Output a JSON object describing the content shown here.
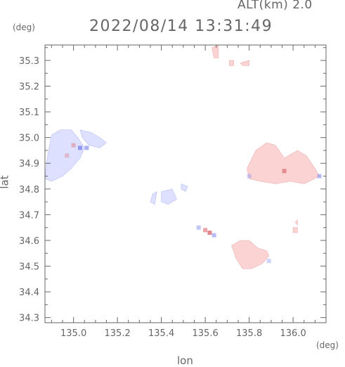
{
  "header": {
    "alt_label": "ALT(km)  2.0",
    "timestamp": "2022/08/14 13:31:49"
  },
  "axes": {
    "y_unit": "(deg)",
    "x_unit": "(deg)",
    "x_label": "lon",
    "y_label": "lat"
  },
  "colors": {
    "axis": "#666666",
    "negative_fill": "#dde0ff",
    "negative_dark": "#8890ee",
    "positive_fill": "#fbd3d3",
    "positive_dark": "#e07a80",
    "background": "#ffffff"
  },
  "chart_data": {
    "type": "heatmap",
    "title": "2022/08/14 13:31:49",
    "subtitle": "ALT(km)  2.0",
    "xlabel": "lon",
    "ylabel": "lat",
    "xlim": [
      134.87,
      136.15
    ],
    "ylim": [
      34.28,
      35.36
    ],
    "grid": false,
    "x_ticks": [
      135.0,
      135.2,
      135.4,
      135.6,
      135.8,
      136.0
    ],
    "x_tick_labels": [
      "135.0",
      "135.2",
      "135.4",
      "135.6",
      "135.8",
      "136.0"
    ],
    "y_ticks": [
      34.3,
      34.4,
      34.5,
      34.6,
      34.7,
      34.8,
      34.9,
      35.0,
      35.1,
      35.2,
      35.3
    ],
    "y_tick_labels": [
      "34.3",
      "34.4",
      "34.5",
      "34.6",
      "34.7",
      "34.8",
      "34.9",
      "35.0",
      "35.1",
      "35.2",
      "35.3"
    ],
    "regions": [
      {
        "sign": "negative",
        "points": [
          [
            134.87,
            34.84
          ],
          [
            134.88,
            34.92
          ],
          [
            134.9,
            35.01
          ],
          [
            134.94,
            35.03
          ],
          [
            134.99,
            35.03
          ],
          [
            135.02,
            35.0
          ],
          [
            135.05,
            34.96
          ],
          [
            135.03,
            34.92
          ],
          [
            134.99,
            34.88
          ],
          [
            134.95,
            34.85
          ],
          [
            134.9,
            34.83
          ]
        ]
      },
      {
        "sign": "negative",
        "points": [
          [
            135.03,
            35.03
          ],
          [
            135.08,
            35.02
          ],
          [
            135.12,
            35.0
          ],
          [
            135.15,
            34.98
          ],
          [
            135.12,
            34.96
          ],
          [
            135.07,
            34.97
          ],
          [
            135.04,
            35.0
          ]
        ]
      },
      {
        "sign": "negative",
        "points": [
          [
            135.4,
            34.79
          ],
          [
            135.45,
            34.8
          ],
          [
            135.47,
            34.76
          ],
          [
            135.43,
            34.74
          ],
          [
            135.4,
            34.75
          ]
        ]
      },
      {
        "sign": "negative",
        "points": [
          [
            135.49,
            34.82
          ],
          [
            135.52,
            34.81
          ],
          [
            135.51,
            34.79
          ],
          [
            135.49,
            34.8
          ]
        ]
      },
      {
        "sign": "negative",
        "points": [
          [
            135.36,
            34.78
          ],
          [
            135.38,
            34.79
          ],
          [
            135.37,
            34.74
          ],
          [
            135.35,
            34.75
          ]
        ]
      },
      {
        "sign": "positive",
        "points": [
          [
            135.79,
            34.88
          ],
          [
            135.83,
            34.95
          ],
          [
            135.88,
            34.98
          ],
          [
            135.92,
            34.97
          ],
          [
            135.96,
            34.92
          ],
          [
            136.02,
            34.95
          ],
          [
            136.06,
            34.93
          ],
          [
            136.1,
            34.88
          ],
          [
            136.12,
            34.85
          ],
          [
            136.05,
            34.82
          ],
          [
            135.99,
            34.83
          ],
          [
            135.92,
            34.82
          ],
          [
            135.85,
            34.83
          ],
          [
            135.8,
            34.84
          ]
        ]
      },
      {
        "sign": "positive",
        "points": [
          [
            135.72,
            34.58
          ],
          [
            135.76,
            34.6
          ],
          [
            135.8,
            34.6
          ],
          [
            135.84,
            34.57
          ],
          [
            135.88,
            34.56
          ],
          [
            135.89,
            34.54
          ],
          [
            135.86,
            34.51
          ],
          [
            135.81,
            34.49
          ],
          [
            135.77,
            34.49
          ],
          [
            135.74,
            34.53
          ]
        ]
      },
      {
        "sign": "positive",
        "points": [
          [
            136.0,
            34.65
          ],
          [
            136.02,
            34.65
          ],
          [
            136.02,
            34.63
          ],
          [
            136.0,
            34.63
          ]
        ]
      },
      {
        "sign": "positive",
        "points": [
          [
            136.01,
            34.67
          ],
          [
            136.02,
            34.68
          ],
          [
            136.02,
            34.66
          ]
        ]
      },
      {
        "sign": "positive",
        "points": [
          [
            135.63,
            35.35
          ],
          [
            135.66,
            35.36
          ],
          [
            135.66,
            35.31
          ],
          [
            135.64,
            35.31
          ]
        ]
      },
      {
        "sign": "positive",
        "points": [
          [
            135.76,
            35.29
          ],
          [
            135.8,
            35.3
          ],
          [
            135.8,
            35.28
          ],
          [
            135.77,
            35.28
          ]
        ]
      },
      {
        "sign": "positive",
        "points": [
          [
            135.71,
            35.3
          ],
          [
            135.73,
            35.3
          ],
          [
            135.73,
            35.28
          ],
          [
            135.71,
            35.28
          ]
        ]
      }
    ],
    "spots": [
      {
        "sign": "positive",
        "lon": 134.97,
        "lat": 34.93,
        "value": 0.4
      },
      {
        "sign": "positive",
        "lon": 135.0,
        "lat": 34.97,
        "value": 0.5
      },
      {
        "sign": "negative",
        "lon": 135.03,
        "lat": 34.96,
        "value": -0.9
      },
      {
        "sign": "negative",
        "lon": 135.06,
        "lat": 34.96,
        "value": -0.7
      },
      {
        "sign": "positive",
        "lon": 135.62,
        "lat": 34.63,
        "value": 0.9
      },
      {
        "sign": "positive",
        "lon": 135.6,
        "lat": 34.64,
        "value": 0.7
      },
      {
        "sign": "negative",
        "lon": 135.64,
        "lat": 34.62,
        "value": -0.6
      },
      {
        "sign": "negative",
        "lon": 135.57,
        "lat": 34.65,
        "value": -0.5
      },
      {
        "sign": "positive",
        "lon": 135.96,
        "lat": 34.87,
        "value": 0.8
      },
      {
        "sign": "negative",
        "lon": 136.12,
        "lat": 34.85,
        "value": -0.6
      },
      {
        "sign": "negative",
        "lon": 135.8,
        "lat": 34.85,
        "value": -0.4
      },
      {
        "sign": "negative",
        "lon": 135.89,
        "lat": 34.52,
        "value": -0.4
      }
    ]
  }
}
